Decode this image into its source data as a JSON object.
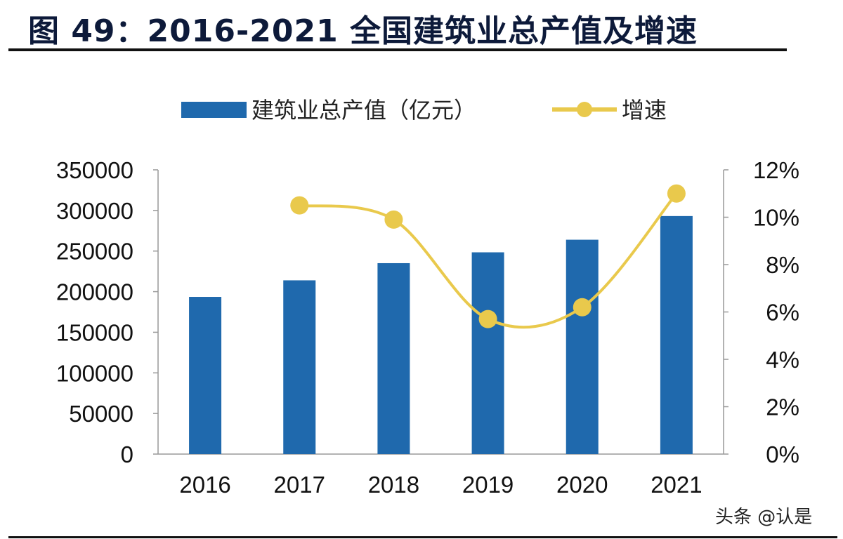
{
  "title": "图 49：2016-2021 全国建筑业总产值及增速",
  "watermark": "头条 @认是",
  "chart_data": {
    "type": "bar+line",
    "categories": [
      "2016",
      "2017",
      "2018",
      "2019",
      "2020",
      "2021"
    ],
    "series": [
      {
        "name": "建筑业总产值（亿元）",
        "type": "bar",
        "axis": "left",
        "color": "#1F69AD",
        "values": [
          193567,
          213944,
          235086,
          248443,
          263947,
          293079
        ]
      },
      {
        "name": "增速",
        "type": "line",
        "axis": "right",
        "color": "#E9C94C",
        "values": [
          null,
          10.5,
          9.9,
          5.7,
          6.2,
          11.0
        ]
      }
    ],
    "left_axis": {
      "ylim": [
        0,
        350000
      ],
      "ticks": [
        "0",
        "50000",
        "100000",
        "150000",
        "200000",
        "250000",
        "300000",
        "350000"
      ]
    },
    "right_axis": {
      "ylim": [
        0,
        12
      ],
      "ticks": [
        "0%",
        "2%",
        "4%",
        "6%",
        "8%",
        "10%",
        "12%"
      ]
    },
    "legend": "top",
    "grid": false
  }
}
